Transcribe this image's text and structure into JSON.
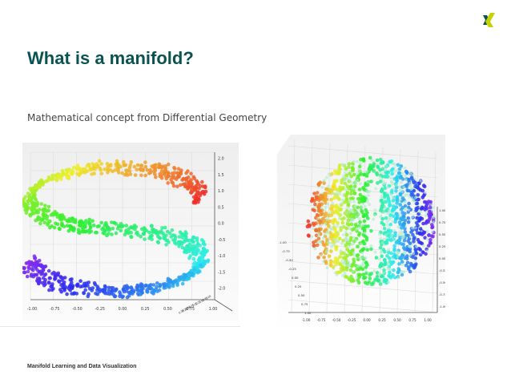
{
  "slide": {
    "title": "What is a manifold?",
    "subtitle": "Mathematical concept from Differential Geometry",
    "footer": "Manifold Learning and Data Visualization",
    "logo_icon": "xing-logo",
    "title_color": "#0b5350",
    "logo_colors": [
      "#0b5350",
      "#c7d300"
    ]
  },
  "chart_data": [
    {
      "type": "scatter",
      "title": "",
      "shape": "s-curve",
      "xlabel": "",
      "ylabel": "",
      "xlim": [
        -1.0,
        1.0
      ],
      "zlim": [
        -2.0,
        2.0
      ],
      "x_ticks": [
        "-1.00",
        "-0.75",
        "-0.50",
        "-0.25",
        "0.00",
        "0.25",
        "0.50",
        "0.75",
        "1.00"
      ],
      "z_ticks": [
        "2.0",
        "1.5",
        "1.0",
        "0.5",
        "0.0",
        "-0.5",
        "-1.0",
        "-1.5",
        "-2.0"
      ],
      "y_ticks": [
        "0.00",
        "0.25",
        "0.50",
        "0.75",
        "1.00",
        "1.25",
        "1.50",
        "1.75",
        "2.00"
      ],
      "colormap": "rainbow",
      "grid": true
    },
    {
      "type": "scatter",
      "title": "",
      "shape": "punctured-sphere",
      "xlabel": "",
      "ylabel": "",
      "xlim": [
        -1.0,
        1.0
      ],
      "ylim": [
        -1.0,
        1.0
      ],
      "zlim": [
        -1.0,
        1.0
      ],
      "x_ticks": [
        "-1.00",
        "-0.75",
        "-0.50",
        "-0.25",
        "0.00",
        "0.25",
        "0.50",
        "0.75",
        "1.00"
      ],
      "y_ticks": [
        "-1.00",
        "-0.75",
        "-0.50",
        "-0.25",
        "0.00",
        "0.25",
        "0.50",
        "0.75",
        "1.00"
      ],
      "z_ticks": [
        "1.00",
        "0.75",
        "0.50",
        "0.25",
        "0.00",
        "-0.25",
        "-0.50",
        "-0.75",
        "-1.00"
      ],
      "colormap": "rainbow",
      "grid": true
    }
  ]
}
